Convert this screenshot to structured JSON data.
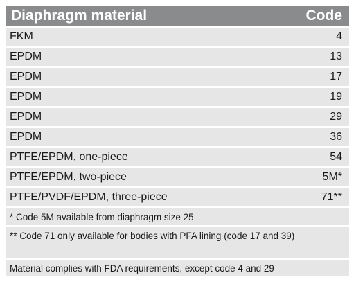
{
  "header": {
    "material": "Diaphragm material",
    "code": "Code"
  },
  "rows": [
    {
      "material": "FKM",
      "code": "4"
    },
    {
      "material": "EPDM",
      "code": "13"
    },
    {
      "material": "EPDM",
      "code": "17"
    },
    {
      "material": "EPDM",
      "code": "19"
    },
    {
      "material": "EPDM",
      "code": "29"
    },
    {
      "material": "EPDM",
      "code": "36"
    },
    {
      "material": "PTFE/EPDM, one-piece",
      "code": "54"
    },
    {
      "material": "PTFE/EPDM, two-piece",
      "code": "5M*"
    },
    {
      "material": "PTFE/PVDF/EPDM, three-piece",
      "code": "71**"
    }
  ],
  "notes": [
    "* Code 5M available from diaphragm size 25",
    "** Code 71 only available for bodies with PFA lining (code 17 and 39)",
    "Material complies with FDA requirements, except code 4 and 29"
  ]
}
